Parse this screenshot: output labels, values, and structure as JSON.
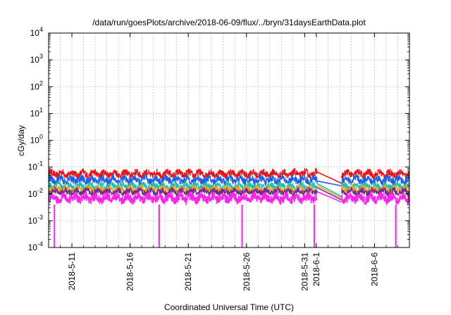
{
  "chart_data": {
    "type": "line",
    "title": "/data/run/goesPlots/archive/2018-06-09/flux/../bryn/31daysEarthData.plot",
    "xlabel": "Coordinated Universal Time (UTC)",
    "ylabel": "cGy/day",
    "yscale": "log",
    "ylim": [
      0.0001,
      10000
    ],
    "y_ticks": [
      {
        "value": 0.0001,
        "base": "10",
        "exp": "-4"
      },
      {
        "value": 0.001,
        "base": "10",
        "exp": "-3"
      },
      {
        "value": 0.01,
        "base": "10",
        "exp": "-2"
      },
      {
        "value": 0.1,
        "base": "10",
        "exp": "-1"
      },
      {
        "value": 1,
        "base": "10",
        "exp": "0"
      },
      {
        "value": 10,
        "base": "10",
        "exp": "1"
      },
      {
        "value": 100,
        "base": "10",
        "exp": "2"
      },
      {
        "value": 1000,
        "base": "10",
        "exp": "3"
      },
      {
        "value": 10000,
        "base": "10",
        "exp": "4"
      }
    ],
    "xlim": [
      "2018-05-09T00:00",
      "2018-06-09T00:00"
    ],
    "x_ticks": [
      {
        "value": "2018-05-11",
        "label": "2018-5-11"
      },
      {
        "value": "2018-05-16",
        "label": "2018-5-16"
      },
      {
        "value": "2018-05-21",
        "label": "2018-5-21"
      },
      {
        "value": "2018-05-26",
        "label": "2018-5-26"
      },
      {
        "value": "2018-05-31",
        "label": "2018-5-31"
      },
      {
        "value": "2018-06-01",
        "label": "2018-6-1"
      },
      {
        "value": "2018-06-06",
        "label": "2018-6-6"
      }
    ],
    "grid": true,
    "data_gap": [
      "2018-06-01T02:00",
      "2018-06-03T04:00"
    ],
    "dropouts": [
      "2018-05-09T12:00",
      "2018-05-18T12:00",
      "2018-05-25T15:00",
      "2018-05-31T20:00",
      "2018-06-07T20:00"
    ],
    "series": [
      {
        "color": "#ee1111",
        "level_min": 0.035,
        "level_max": 0.09,
        "gap_start": 0.065,
        "gap_end": 0.025
      },
      {
        "color": "#1f5fe8",
        "level_min": 0.02,
        "level_max": 0.055,
        "gap_start": 0.03,
        "gap_end": 0.02
      },
      {
        "color": "#1fbfb0",
        "level_min": 0.012,
        "level_max": 0.03,
        "gap_start": 0.024,
        "gap_end": 0.008
      },
      {
        "color": "#e6a71f",
        "level_min": 0.01,
        "level_max": 0.022,
        "gap_start": 0.02,
        "gap_end": 0.007
      },
      {
        "color": "#7a2a8a",
        "level_min": 0.008,
        "level_max": 0.018,
        "gap_start": 0.017,
        "gap_end": 0.006
      },
      {
        "color": "#ff22ee",
        "level_min": 0.004,
        "level_max": 0.012,
        "gap_start": 0.012,
        "gap_end": 0.005
      }
    ]
  }
}
